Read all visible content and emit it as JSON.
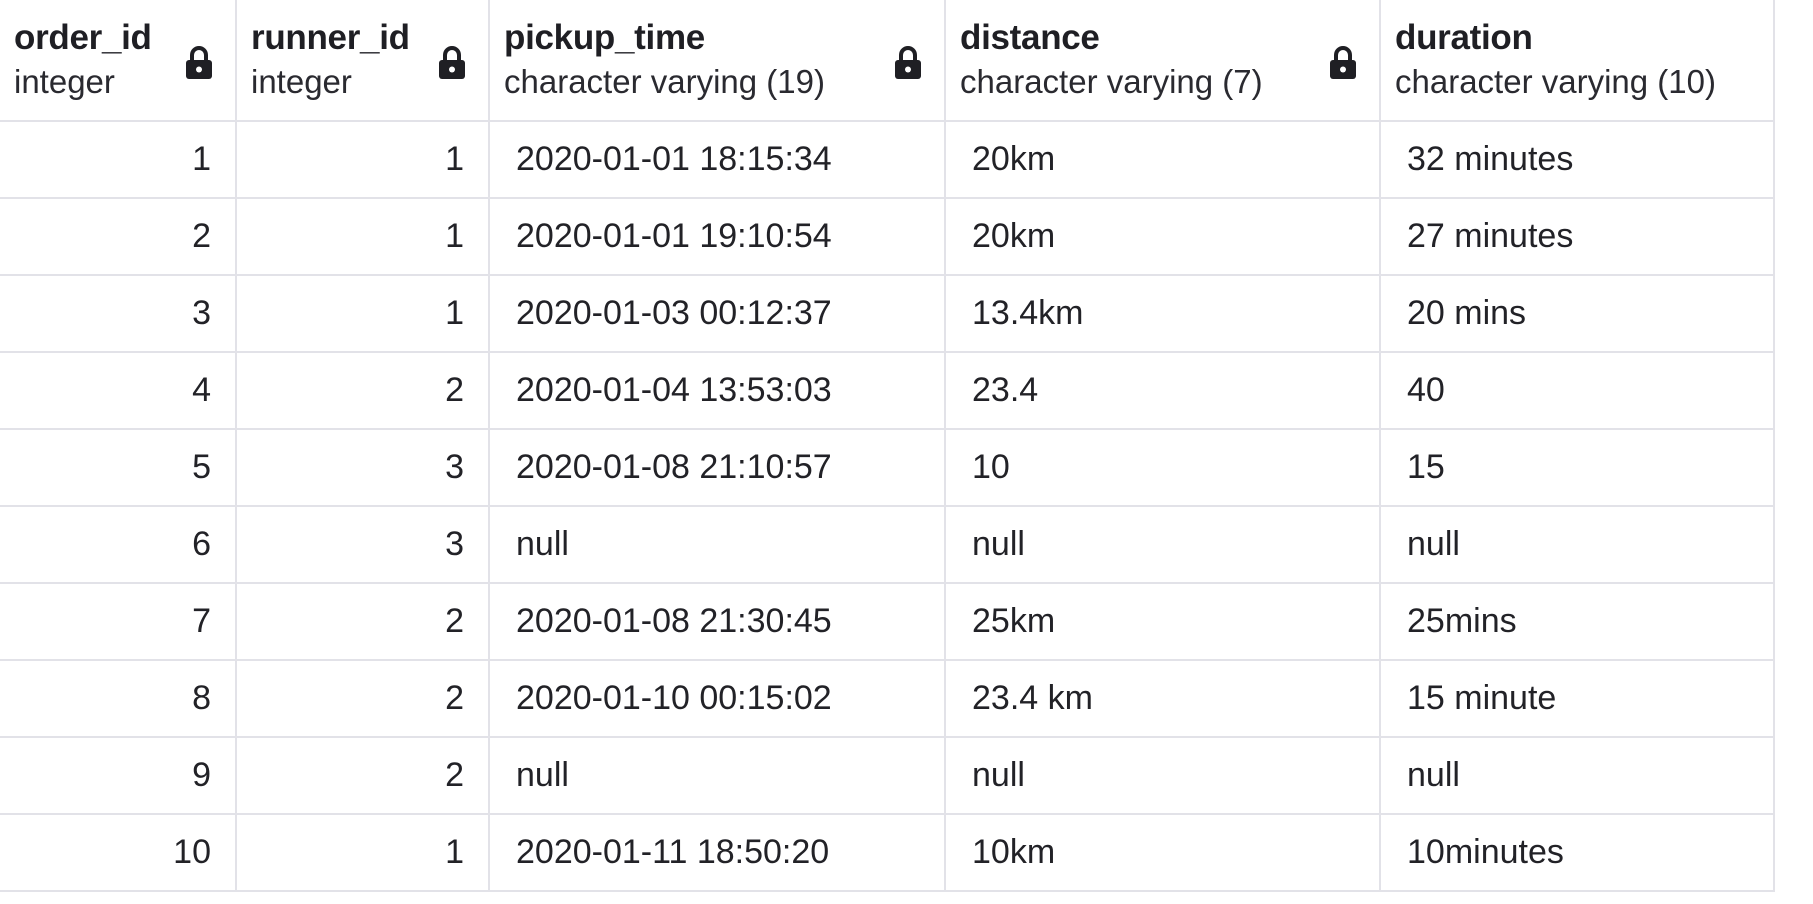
{
  "columns": [
    {
      "name": "order_id",
      "type": "integer",
      "locked": true,
      "icon": "lock-icon"
    },
    {
      "name": "runner_id",
      "type": "integer",
      "locked": true,
      "icon": "lock-icon"
    },
    {
      "name": "pickup_time",
      "type": "character varying (19)",
      "locked": true,
      "icon": "lock-icon"
    },
    {
      "name": "distance",
      "type": "character varying (7)",
      "locked": true,
      "icon": "lock-icon"
    },
    {
      "name": "duration",
      "type": "character varying (10)",
      "locked": false
    }
  ],
  "rows": [
    [
      "1",
      "1",
      "2020-01-01 18:15:34",
      "20km",
      "32 minutes"
    ],
    [
      "2",
      "1",
      "2020-01-01 19:10:54",
      "20km",
      "27 minutes"
    ],
    [
      "3",
      "1",
      "2020-01-03 00:12:37",
      "13.4km",
      "20 mins"
    ],
    [
      "4",
      "2",
      "2020-01-04 13:53:03",
      "23.4",
      "40"
    ],
    [
      "5",
      "3",
      "2020-01-08 21:10:57",
      "10",
      "15"
    ],
    [
      "6",
      "3",
      "null",
      "null",
      "null"
    ],
    [
      "7",
      "2",
      "2020-01-08 21:30:45",
      "25km",
      "25mins"
    ],
    [
      "8",
      "2",
      "2020-01-10 00:15:02",
      "23.4 km",
      "15 minute"
    ],
    [
      "9",
      "2",
      "null",
      "null",
      "null"
    ],
    [
      "10",
      "1",
      "2020-01-11 18:50:20",
      "10km",
      "10minutes"
    ]
  ]
}
